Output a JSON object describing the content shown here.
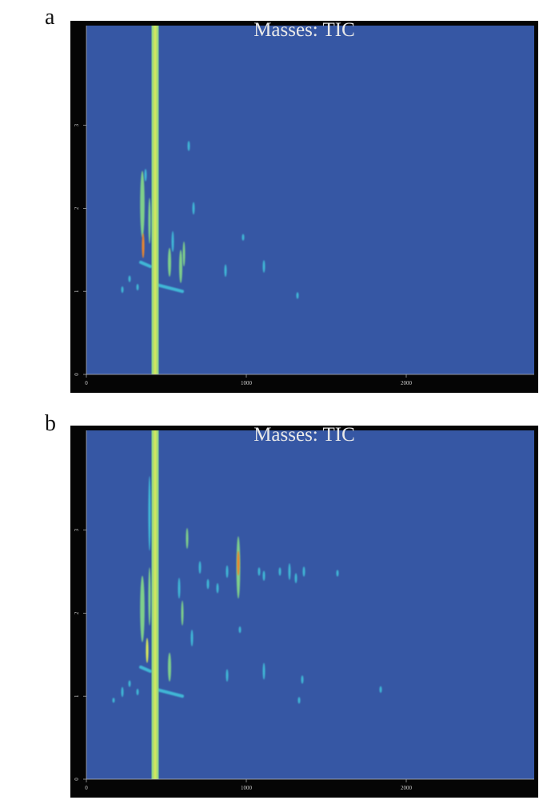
{
  "panels": [
    {
      "label": "a",
      "title": "Masses:  TIC"
    },
    {
      "label": "b",
      "title": "Masses:  TIC"
    }
  ],
  "colors": {
    "frame": "#050505",
    "plot_bg": "#3657a4",
    "low": "#3fb7d6",
    "mid": "#7fcf8a",
    "high": "#d9e85c",
    "peak": "#e8852f",
    "tick_text": "#cfcfcf",
    "title_text": "#e8e8e8"
  },
  "chart_data": [
    {
      "type": "heatmap",
      "title": "Masses:  TIC",
      "xlabel": "",
      "ylabel": "",
      "xlim": [
        0,
        2800
      ],
      "ylim": [
        0,
        4.2
      ],
      "xticks": [
        0,
        1000,
        2000
      ],
      "xtick_labels": [
        "0",
        "1000",
        "2000"
      ],
      "yticks": [
        0,
        1,
        2,
        3
      ],
      "ytick_labels": [
        "0",
        "1",
        "2",
        "3"
      ],
      "grid": false,
      "solvent_band_x": 430,
      "peaks": [
        {
          "x": 350,
          "y": 2.05,
          "h": 0.8,
          "w": 14,
          "level": "mid"
        },
        {
          "x": 355,
          "y": 1.55,
          "h": 0.3,
          "w": 8,
          "level": "peak"
        },
        {
          "x": 370,
          "y": 2.4,
          "h": 0.15,
          "w": 5,
          "level": "low"
        },
        {
          "x": 395,
          "y": 1.85,
          "h": 0.55,
          "w": 8,
          "level": "mid"
        },
        {
          "x": 520,
          "y": 1.35,
          "h": 0.35,
          "w": 10,
          "level": "mid"
        },
        {
          "x": 540,
          "y": 1.6,
          "h": 0.25,
          "w": 6,
          "level": "low"
        },
        {
          "x": 590,
          "y": 1.3,
          "h": 0.4,
          "w": 10,
          "level": "mid"
        },
        {
          "x": 610,
          "y": 1.45,
          "h": 0.3,
          "w": 6,
          "level": "mid"
        },
        {
          "x": 670,
          "y": 2.0,
          "h": 0.15,
          "w": 5,
          "level": "low"
        },
        {
          "x": 640,
          "y": 2.75,
          "h": 0.12,
          "w": 4,
          "level": "low"
        },
        {
          "x": 870,
          "y": 1.25,
          "h": 0.15,
          "w": 5,
          "level": "low"
        },
        {
          "x": 980,
          "y": 1.65,
          "h": 0.08,
          "w": 4,
          "level": "low"
        },
        {
          "x": 1110,
          "y": 1.3,
          "h": 0.15,
          "w": 5,
          "level": "low"
        },
        {
          "x": 1320,
          "y": 0.95,
          "h": 0.08,
          "w": 4,
          "level": "low"
        },
        {
          "x": 225,
          "y": 1.02,
          "h": 0.08,
          "w": 4,
          "level": "low"
        },
        {
          "x": 270,
          "y": 1.15,
          "h": 0.08,
          "w": 4,
          "level": "low"
        },
        {
          "x": 320,
          "y": 1.05,
          "h": 0.08,
          "w": 4,
          "level": "low"
        }
      ],
      "streaks": [
        {
          "x1": 340,
          "y1": 1.35,
          "x2": 400,
          "y2": 1.3,
          "level": "low"
        },
        {
          "x1": 440,
          "y1": 1.08,
          "x2": 600,
          "y2": 1.0,
          "level": "low"
        }
      ]
    },
    {
      "type": "heatmap",
      "title": "Masses:  TIC",
      "xlabel": "",
      "ylabel": "",
      "xlim": [
        0,
        2800
      ],
      "ylim": [
        0,
        4.2
      ],
      "xticks": [
        0,
        1000,
        2000
      ],
      "xtick_labels": [
        "0",
        "1000",
        "2000"
      ],
      "yticks": [
        0,
        1,
        2,
        3
      ],
      "ytick_labels": [
        "0",
        "1",
        "2",
        "3"
      ],
      "grid": false,
      "solvent_band_x": 430,
      "peaks": [
        {
          "x": 350,
          "y": 2.05,
          "h": 0.8,
          "w": 14,
          "level": "mid"
        },
        {
          "x": 380,
          "y": 1.55,
          "h": 0.3,
          "w": 8,
          "level": "high"
        },
        {
          "x": 395,
          "y": 3.2,
          "h": 0.9,
          "w": 8,
          "level": "low"
        },
        {
          "x": 395,
          "y": 2.2,
          "h": 0.7,
          "w": 8,
          "level": "mid"
        },
        {
          "x": 520,
          "y": 1.35,
          "h": 0.35,
          "w": 10,
          "level": "mid"
        },
        {
          "x": 580,
          "y": 2.3,
          "h": 0.25,
          "w": 6,
          "level": "low"
        },
        {
          "x": 600,
          "y": 2.0,
          "h": 0.3,
          "w": 6,
          "level": "mid"
        },
        {
          "x": 630,
          "y": 2.9,
          "h": 0.25,
          "w": 6,
          "level": "mid"
        },
        {
          "x": 660,
          "y": 1.7,
          "h": 0.2,
          "w": 6,
          "level": "low"
        },
        {
          "x": 710,
          "y": 2.55,
          "h": 0.15,
          "w": 5,
          "level": "low"
        },
        {
          "x": 760,
          "y": 2.35,
          "h": 0.12,
          "w": 4,
          "level": "low"
        },
        {
          "x": 820,
          "y": 2.3,
          "h": 0.12,
          "w": 4,
          "level": "low"
        },
        {
          "x": 880,
          "y": 2.5,
          "h": 0.15,
          "w": 4,
          "level": "low"
        },
        {
          "x": 950,
          "y": 2.55,
          "h": 0.75,
          "w": 12,
          "level": "mid"
        },
        {
          "x": 950,
          "y": 2.6,
          "h": 0.3,
          "w": 8,
          "level": "peak"
        },
        {
          "x": 1080,
          "y": 2.5,
          "h": 0.1,
          "w": 6,
          "level": "low"
        },
        {
          "x": 1110,
          "y": 2.45,
          "h": 0.12,
          "w": 6,
          "level": "low"
        },
        {
          "x": 1210,
          "y": 2.5,
          "h": 0.1,
          "w": 5,
          "level": "low"
        },
        {
          "x": 1270,
          "y": 2.5,
          "h": 0.2,
          "w": 6,
          "level": "low"
        },
        {
          "x": 1310,
          "y": 2.42,
          "h": 0.12,
          "w": 5,
          "level": "low"
        },
        {
          "x": 1360,
          "y": 2.5,
          "h": 0.12,
          "w": 5,
          "level": "low"
        },
        {
          "x": 1570,
          "y": 2.48,
          "h": 0.08,
          "w": 4,
          "level": "low"
        },
        {
          "x": 880,
          "y": 1.25,
          "h": 0.15,
          "w": 5,
          "level": "low"
        },
        {
          "x": 960,
          "y": 1.8,
          "h": 0.08,
          "w": 4,
          "level": "low"
        },
        {
          "x": 1110,
          "y": 1.3,
          "h": 0.2,
          "w": 5,
          "level": "low"
        },
        {
          "x": 1330,
          "y": 0.95,
          "h": 0.08,
          "w": 4,
          "level": "low"
        },
        {
          "x": 1350,
          "y": 1.2,
          "h": 0.1,
          "w": 4,
          "level": "low"
        },
        {
          "x": 1840,
          "y": 1.08,
          "h": 0.08,
          "w": 4,
          "level": "low"
        },
        {
          "x": 170,
          "y": 0.95,
          "h": 0.06,
          "w": 4,
          "level": "low"
        },
        {
          "x": 225,
          "y": 1.05,
          "h": 0.12,
          "w": 5,
          "level": "low"
        },
        {
          "x": 270,
          "y": 1.15,
          "h": 0.08,
          "w": 4,
          "level": "low"
        },
        {
          "x": 320,
          "y": 1.05,
          "h": 0.08,
          "w": 4,
          "level": "low"
        }
      ],
      "streaks": [
        {
          "x1": 340,
          "y1": 1.35,
          "x2": 400,
          "y2": 1.3,
          "level": "low"
        },
        {
          "x1": 440,
          "y1": 1.08,
          "x2": 600,
          "y2": 1.0,
          "level": "low"
        }
      ]
    }
  ]
}
